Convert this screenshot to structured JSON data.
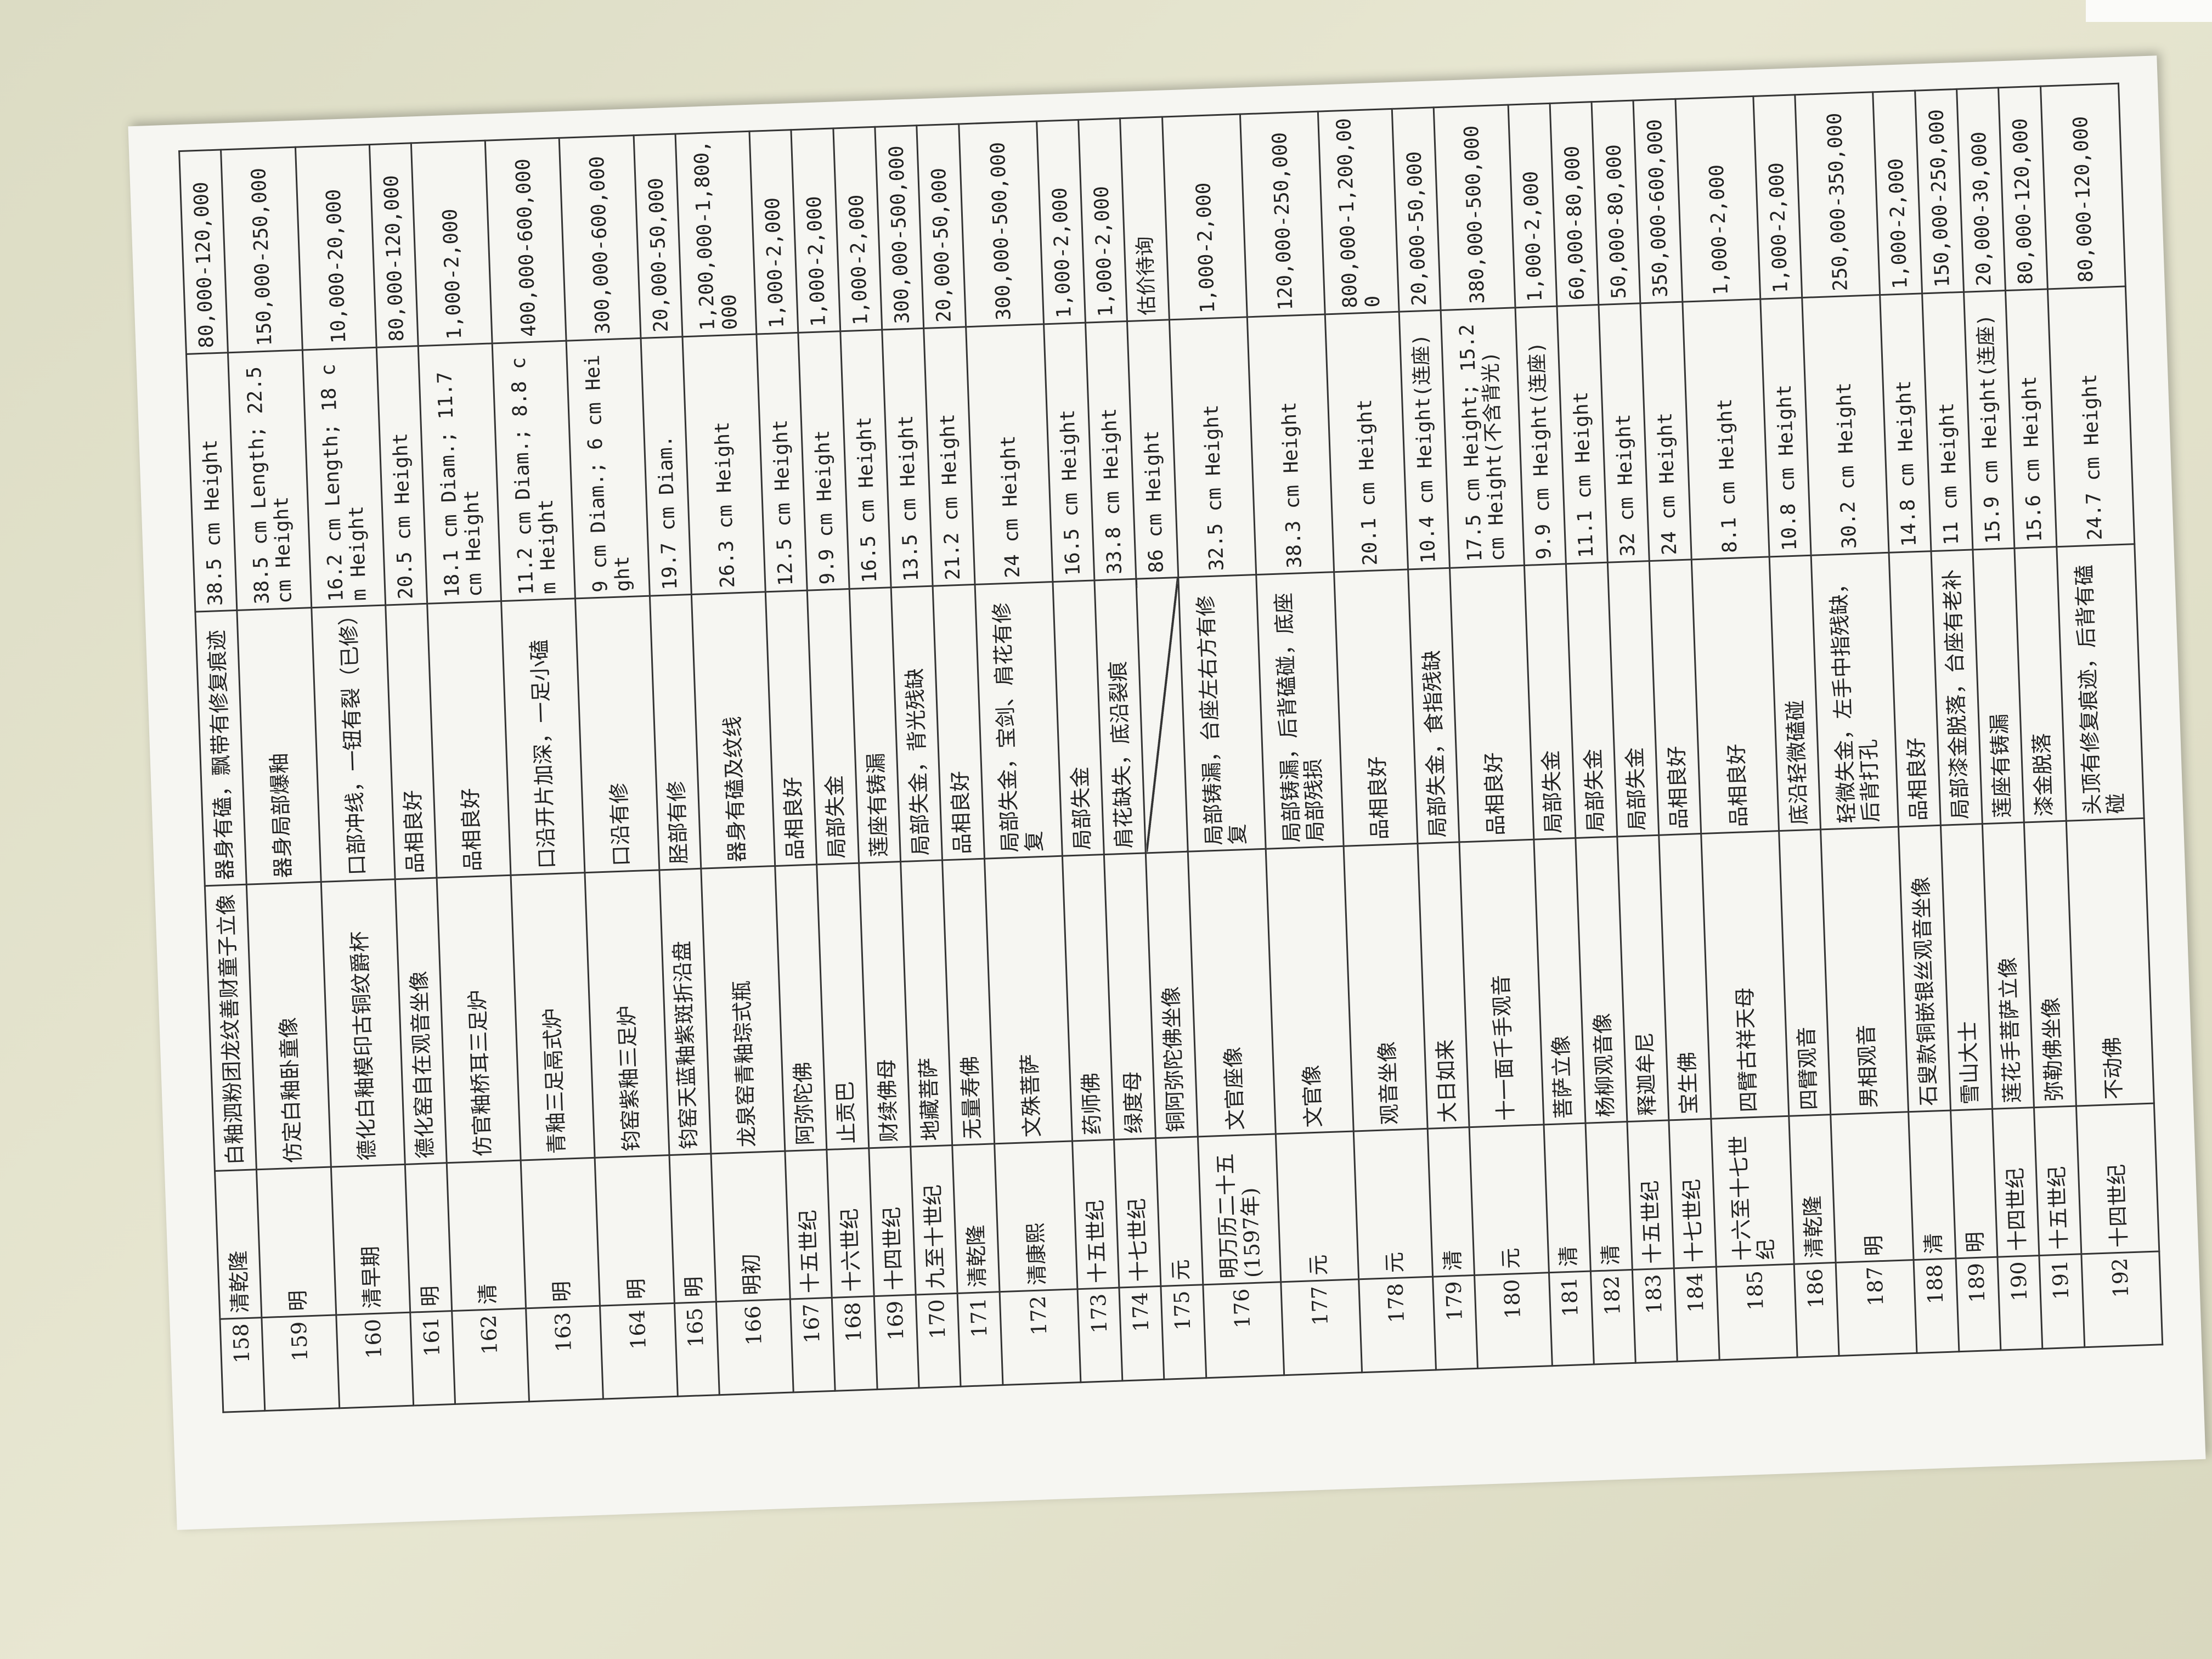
{
  "table": {
    "rows": [
      {
        "no": 158,
        "period": "清乾隆",
        "title": "白釉泗粉团龙纹善财童子立像",
        "condition": "器身有磕，飘带有修复痕迹",
        "size": "38.5 cm Height",
        "estimate": "80,000-120,000"
      },
      {
        "no": 159,
        "period": "明",
        "title": "仿定白釉卧童像",
        "condition": "器身局部爆釉",
        "size": "38.5 cm Length; 22.5 cm Height",
        "estimate": "150,000-250,000"
      },
      {
        "no": 160,
        "period": "清早期",
        "title": "德化白釉模印古铜纹爵杯",
        "condition": "口部冲线，一钮有裂（已修）",
        "size": "16.2 cm Length; 18 cm Height",
        "estimate": "10,000-20,000"
      },
      {
        "no": 161,
        "period": "明",
        "title": "德化窑自在观音坐像",
        "condition": "品相良好",
        "size": "20.5 cm Height",
        "estimate": "80,000-120,000"
      },
      {
        "no": 162,
        "period": "清",
        "title": "仿官釉桥耳三足炉",
        "condition": "品相良好",
        "size": "18.1 cm Diam.; 11.7 cm Height",
        "estimate": "1,000-2,000"
      },
      {
        "no": 163,
        "period": "明",
        "title": "青釉三足鬲式炉",
        "condition": "口沿开片加深，一足小磕",
        "size": "11.2 cm Diam.; 8.8 cm Height",
        "estimate": "400,000-600,000"
      },
      {
        "no": 164,
        "period": "明",
        "title": "钧窑紫釉三足炉",
        "condition": "口沿有修",
        "size": "9 cm Diam.; 6 cm Height",
        "estimate": "300,000-600,000"
      },
      {
        "no": 165,
        "period": "明",
        "title": "钧窑天蓝釉紫斑折沿盘",
        "condition": "胫部有修",
        "size": "19.7 cm Diam.",
        "estimate": "20,000-50,000"
      },
      {
        "no": 166,
        "period": "明初",
        "title": "龙泉窑青釉琮式瓶",
        "condition": "器身有磕及纹线",
        "size": "26.3 cm Height",
        "estimate": "1,200,000-1,800,000"
      },
      {
        "no": 167,
        "period": "十五世纪",
        "title": "阿弥陀佛",
        "condition": "品相良好",
        "size": "12.5 cm Height",
        "estimate": "1,000-2,000"
      },
      {
        "no": 168,
        "period": "十六世纪",
        "title": "止贡巴",
        "condition": "局部失金",
        "size": "9.9 cm Height",
        "estimate": "1,000-2,000"
      },
      {
        "no": 169,
        "period": "十四世纪",
        "title": "财续佛母",
        "condition": "莲座有铸漏",
        "size": "16.5 cm Height",
        "estimate": "1,000-2,000"
      },
      {
        "no": 170,
        "period": "九至十世纪",
        "title": "地藏菩萨",
        "condition": "局部失金，背光残缺",
        "size": "13.5 cm Height",
        "estimate": "300,000-500,000"
      },
      {
        "no": 171,
        "period": "清乾隆",
        "title": "无量寿佛",
        "condition": "品相良好",
        "size": "21.2 cm Height",
        "estimate": "20,000-50,000"
      },
      {
        "no": 172,
        "period": "清康熙",
        "title": "文殊菩萨",
        "condition": "局部失金，宝剑、肩花有修复",
        "size": "24 cm Height",
        "estimate": "300,000-500,000"
      },
      {
        "no": 173,
        "period": "十五世纪",
        "title": "药师佛",
        "condition": "局部失金",
        "size": "16.5 cm Height",
        "estimate": "1,000-2,000"
      },
      {
        "no": 174,
        "period": "十七世纪",
        "title": "绿度母",
        "condition": "肩花缺失，底沿裂痕",
        "size": "33.8 cm Height",
        "estimate": "1,000-2,000"
      },
      {
        "no": 175,
        "period": "元",
        "title": "铜阿弥陀佛坐像",
        "size": "86 cm Height",
        "estimate": "估价待询"
      },
      {
        "no": 176,
        "period": "明万历二十五(1597年)",
        "title": "文官座像",
        "condition": "局部铸漏，台座左右方有修复",
        "size": "32.5 cm Height",
        "estimate": "1,000-2,000"
      },
      {
        "no": 177,
        "period": "元",
        "title": "文官像",
        "condition": "局部铸漏，后背磕碰，底座局部残损",
        "size": "38.3 cm Height",
        "estimate": "120,000-250,000"
      },
      {
        "no": 178,
        "period": "元",
        "title": "观音坐像",
        "condition": "品相良好",
        "size": "20.1 cm Height",
        "estimate": "800,000-1,200,000"
      },
      {
        "no": 179,
        "period": "清",
        "title": "大日如来",
        "condition": "局部失金，食指残缺",
        "size": "10.4 cm Height(连座)",
        "estimate": "20,000-50,000"
      },
      {
        "no": 180,
        "period": "元",
        "title": "十一面千手观音",
        "condition": "品相良好",
        "size": "17.5 cm Height; 15.2 cm Height(不含背光)",
        "estimate": "380,000-500,000"
      },
      {
        "no": 181,
        "period": "清",
        "title": "菩萨立像",
        "condition": "局部失金",
        "size": "9.9 cm Height(连座)",
        "estimate": "1,000-2,000"
      },
      {
        "no": 182,
        "period": "清",
        "title": "杨柳观音像",
        "condition": "局部失金",
        "size": "11.1 cm Height",
        "estimate": "60,000-80,000"
      },
      {
        "no": 183,
        "period": "十五世纪",
        "title": "释迦牟尼",
        "condition": "局部失金",
        "size": "32 cm Height",
        "estimate": "50,000-80,000"
      },
      {
        "no": 184,
        "period": "十七世纪",
        "title": "宝生佛",
        "condition": "品相良好",
        "size": "24 cm Height",
        "estimate": "350,000-600,000"
      },
      {
        "no": 185,
        "period": "十六至十七世纪",
        "title": "四臂古祥天母",
        "condition": "品相良好",
        "size": "8.1 cm Height",
        "estimate": "1,000-2,000"
      },
      {
        "no": 186,
        "period": "清乾隆",
        "title": "四臂观音",
        "condition": "底沿轻微磕碰",
        "size": "10.8 cm Height",
        "estimate": "1,000-2,000"
      },
      {
        "no": 187,
        "period": "明",
        "title": "男相观音",
        "condition": "轻微失金，左手中指残缺，后背打孔",
        "size": "30.2 cm Height",
        "estimate": "250,000-350,000"
      },
      {
        "no": 188,
        "period": "清",
        "title": "石叟款铜嵌银丝观音坐像",
        "condition": "品相良好",
        "size": "14.8 cm Height",
        "estimate": "1,000-2,000"
      },
      {
        "no": 189,
        "period": "明",
        "title": "雪山大士",
        "condition": "局部漆金脱落，台座有老补",
        "size": "11 cm Height",
        "estimate": "150,000-250,000"
      },
      {
        "no": 190,
        "period": "十四世纪",
        "title": "莲花手菩萨立像",
        "condition": "莲座有铸漏",
        "size": "15.9 cm Height(连座)",
        "estimate": "20,000-30,000"
      },
      {
        "no": 191,
        "period": "十五世纪",
        "title": "弥勒佛坐像",
        "condition": "漆金脱落",
        "size": "15.6 cm Height",
        "estimate": "80,000-120,000"
      },
      {
        "no": 192,
        "period": "十四世纪",
        "title": "不动佛",
        "condition": "头顶有修复痕迹，后背有磕碰",
        "size": "24.7 cm Height",
        "estimate": "80,000-120,000"
      }
    ]
  }
}
